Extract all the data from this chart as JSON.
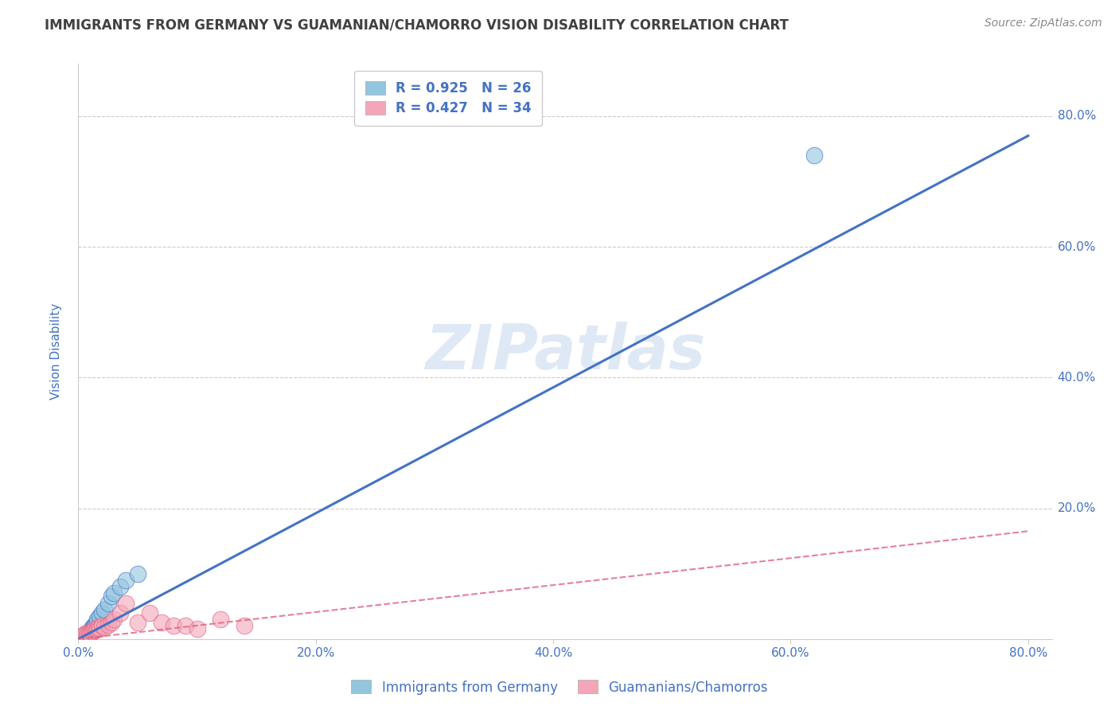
{
  "title": "IMMIGRANTS FROM GERMANY VS GUAMANIAN/CHAMORRO VISION DISABILITY CORRELATION CHART",
  "source": "Source: ZipAtlas.com",
  "ylabel": "Vision Disability",
  "watermark": "ZIPatlas",
  "legend_r1": "R = 0.925",
  "legend_n1": "N = 26",
  "legend_r2": "R = 0.427",
  "legend_n2": "N = 34",
  "color_blue": "#92c5de",
  "color_pink": "#f4a6b8",
  "line_blue": "#4472c4",
  "line_pink": "#e06080",
  "text_color": "#4472c4",
  "title_color": "#404040",
  "source_color": "#888888",
  "xlim": [
    0.0,
    0.82
  ],
  "ylim": [
    0.0,
    0.88
  ],
  "xticks": [
    0.0,
    0.2,
    0.4,
    0.6,
    0.8
  ],
  "yticks": [
    0.0,
    0.2,
    0.4,
    0.6,
    0.8
  ],
  "ytick_labels": [
    "",
    "20.0%",
    "40.0%",
    "60.0%",
    "80.0%"
  ],
  "xtick_labels": [
    "0.0%",
    "20.0%",
    "40.0%",
    "60.0%",
    "80.0%"
  ],
  "blue_scatter_x": [
    0.002,
    0.003,
    0.004,
    0.005,
    0.005,
    0.006,
    0.007,
    0.008,
    0.009,
    0.01,
    0.011,
    0.012,
    0.013,
    0.014,
    0.015,
    0.016,
    0.018,
    0.02,
    0.022,
    0.025,
    0.028,
    0.03,
    0.035,
    0.04,
    0.05,
    0.62
  ],
  "blue_scatter_y": [
    0.002,
    0.003,
    0.004,
    0.005,
    0.006,
    0.007,
    0.008,
    0.009,
    0.01,
    0.012,
    0.015,
    0.018,
    0.02,
    0.022,
    0.025,
    0.03,
    0.035,
    0.04,
    0.045,
    0.055,
    0.065,
    0.07,
    0.08,
    0.09,
    0.1,
    0.74
  ],
  "pink_scatter_x": [
    0.001,
    0.002,
    0.003,
    0.004,
    0.005,
    0.005,
    0.006,
    0.007,
    0.008,
    0.009,
    0.01,
    0.011,
    0.012,
    0.013,
    0.014,
    0.015,
    0.016,
    0.017,
    0.018,
    0.02,
    0.022,
    0.025,
    0.028,
    0.03,
    0.035,
    0.04,
    0.05,
    0.06,
    0.07,
    0.08,
    0.09,
    0.1,
    0.12,
    0.14
  ],
  "pink_scatter_y": [
    0.002,
    0.003,
    0.004,
    0.005,
    0.006,
    0.007,
    0.008,
    0.006,
    0.009,
    0.008,
    0.01,
    0.012,
    0.011,
    0.013,
    0.015,
    0.014,
    0.016,
    0.018,
    0.015,
    0.02,
    0.018,
    0.022,
    0.025,
    0.03,
    0.04,
    0.055,
    0.025,
    0.04,
    0.025,
    0.02,
    0.02,
    0.015,
    0.03,
    0.02
  ],
  "blue_line_x": [
    0.0,
    0.8
  ],
  "blue_line_y": [
    0.0,
    0.77
  ],
  "pink_line_x": [
    0.0,
    0.8
  ],
  "pink_line_y": [
    0.0,
    0.165
  ],
  "grid_color": "#cccccc",
  "bg_color": "#ffffff"
}
